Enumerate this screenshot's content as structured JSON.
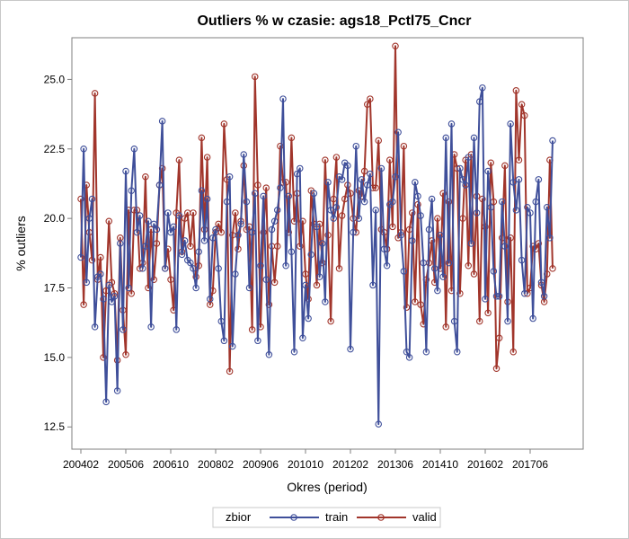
{
  "colors": {
    "train": "#3f4f9a",
    "valid": "#a1352b",
    "axis": "#7f7f7f",
    "background": "#ffffff"
  },
  "chart_data": {
    "type": "line",
    "title": "Outliers % w czasie: ags18_Pctl75_Cncr",
    "xlabel": "Okres (period)",
    "ylabel": "% outliers",
    "ylim": [
      11.7,
      26.5
    ],
    "yticks": [
      12.5,
      15.0,
      17.5,
      20.0,
      22.5,
      25.0
    ],
    "ytick_labels": [
      "12.5",
      "15.0",
      "17.5",
      "20.0",
      "22.5",
      "25.0"
    ],
    "x_start_period": "200402",
    "xticks": [
      "200402",
      "200506",
      "200610",
      "200802",
      "200906",
      "201010",
      "201202",
      "201306",
      "201410",
      "201602",
      "201706"
    ],
    "grid": false,
    "legend": {
      "title": "zbior",
      "position": "bottom"
    },
    "series": [
      {
        "name": "train",
        "values": [
          18.6,
          22.5,
          17.7,
          20.0,
          20.7,
          16.1,
          17.9,
          18.0,
          17.1,
          13.4,
          17.6,
          17.0,
          17.2,
          13.8,
          19.1,
          16.0,
          21.7,
          17.5,
          21.0,
          22.5,
          19.5,
          20.1,
          18.2,
          19.0,
          19.9,
          16.1,
          19.8,
          19.6,
          21.2,
          23.5,
          18.2,
          20.2,
          19.5,
          19.7,
          16.0,
          20.1,
          18.7,
          19.2,
          18.5,
          18.4,
          18.2,
          17.5,
          18.8,
          21.0,
          19.2,
          20.7,
          17.1,
          19.3,
          19.6,
          18.2,
          16.3,
          15.6,
          20.6,
          21.5,
          15.4,
          18.0,
          19.4,
          19.8,
          22.3,
          20.6,
          17.5,
          19.5,
          20.9,
          15.6,
          18.3,
          20.8,
          17.8,
          15.1,
          19.6,
          19.9,
          20.3,
          21.1,
          24.3,
          18.3,
          20.8,
          18.8,
          15.2,
          21.6,
          21.8,
          15.7,
          17.6,
          16.4,
          18.7,
          20.9,
          19.7,
          17.9,
          19.1,
          17.0,
          21.3,
          20.3,
          20.0,
          20.4,
          21.5,
          21.4,
          22.0,
          21.9,
          15.3,
          19.5,
          22.6,
          20.0,
          21.4,
          20.6,
          21.2,
          21.6,
          17.6,
          20.3,
          12.6,
          21.8,
          18.9,
          18.3,
          20.5,
          20.6,
          21.5,
          23.1,
          19.4,
          18.1,
          15.2,
          15.0,
          19.2,
          21.3,
          20.8,
          20.1,
          18.4,
          15.2,
          19.6,
          20.7,
          18.2,
          17.4,
          19.4,
          17.9,
          22.9,
          18.4,
          23.4,
          16.3,
          15.2,
          21.8,
          21.4,
          21.2,
          22.2,
          19.1,
          22.9,
          20.2,
          24.2,
          24.7,
          17.1,
          21.7,
          20.4,
          18.1,
          17.2,
          17.2,
          20.6,
          19.0,
          16.3,
          23.4,
          21.3,
          20.3,
          21.4,
          18.5,
          17.3,
          20.4,
          20.2,
          16.4,
          20.6,
          21.4,
          17.7,
          17.2,
          20.4,
          19.3,
          22.8
        ]
      },
      {
        "name": "valid",
        "values": [
          20.7,
          16.9,
          21.2,
          19.5,
          18.5,
          24.5,
          17.8,
          18.6,
          15.0,
          17.4,
          19.9,
          17.7,
          17.3,
          14.9,
          19.3,
          16.7,
          15.1,
          20.3,
          17.3,
          20.3,
          20.3,
          18.2,
          18.4,
          21.5,
          17.5,
          19.6,
          17.8,
          19.1,
          21.2,
          21.8,
          18.2,
          18.9,
          17.8,
          16.7,
          20.2,
          22.1,
          18.8,
          20.0,
          20.2,
          19.0,
          20.2,
          17.9,
          18.3,
          22.9,
          19.6,
          22.2,
          16.9,
          17.4,
          19.5,
          19.8,
          19.5,
          23.4,
          21.4,
          14.5,
          19.4,
          20.2,
          18.9,
          19.9,
          21.9,
          19.6,
          19.7,
          16.0,
          25.1,
          21.2,
          16.1,
          19.5,
          21.1,
          16.9,
          19.0,
          17.7,
          19.0,
          22.6,
          21.3,
          21.3,
          19.5,
          22.9,
          19.9,
          20.9,
          19.0,
          19.9,
          18.0,
          17.1,
          21.0,
          19.8,
          17.6,
          19.8,
          18.4,
          22.1,
          19.4,
          16.3,
          20.7,
          22.2,
          18.2,
          20.1,
          20.7,
          21.2,
          20.9,
          20.0,
          19.5,
          21.0,
          20.8,
          21.7,
          24.1,
          24.3,
          21.1,
          21.1,
          22.8,
          19.6,
          19.5,
          18.9,
          22.1,
          19.7,
          26.2,
          19.3,
          19.5,
          22.6,
          16.8,
          19.6,
          20.2,
          17.0,
          20.5,
          16.9,
          16.2,
          17.8,
          18.4,
          19.2,
          17.7,
          20.0,
          18.2,
          20.9,
          16.1,
          20.6,
          17.4,
          22.3,
          21.8,
          17.3,
          20.0,
          22.1,
          18.3,
          22.3,
          18.0,
          20.8,
          16.3,
          20.7,
          19.7,
          16.6,
          22.0,
          20.6,
          14.6,
          15.7,
          19.3,
          21.9,
          17.0,
          19.3,
          15.2,
          24.6,
          22.1,
          24.1,
          23.7,
          17.3,
          17.5,
          19.0,
          18.9,
          19.1,
          17.6,
          17.0,
          18.0,
          22.1,
          18.2
        ]
      }
    ]
  }
}
